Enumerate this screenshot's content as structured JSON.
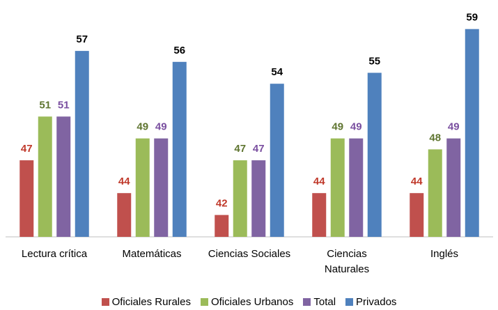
{
  "chart_data": {
    "type": "bar",
    "categories": [
      "Lectura crítica",
      "Matemáticas",
      "Ciencias Sociales",
      "Ciencias Naturales",
      "Inglés"
    ],
    "series": [
      {
        "name": "Oficiales Rurales",
        "color": "#c0504d",
        "label_color": "#c0392b",
        "values": [
          47,
          44,
          42,
          44,
          44
        ]
      },
      {
        "name": "Oficiales Urbanos",
        "color": "#9bbb59",
        "label_color": "#5f7530",
        "values": [
          51,
          49,
          47,
          49,
          48
        ]
      },
      {
        "name": "Total",
        "color": "#8064a2",
        "label_color": "#7a4fa0",
        "values": [
          51,
          49,
          47,
          49,
          49
        ]
      },
      {
        "name": "Privados",
        "color": "#4f81bd",
        "label_color": "#000000",
        "values": [
          57,
          56,
          54,
          55,
          59
        ]
      }
    ],
    "ylim": [
      40,
      60
    ],
    "legend": "bottom"
  }
}
